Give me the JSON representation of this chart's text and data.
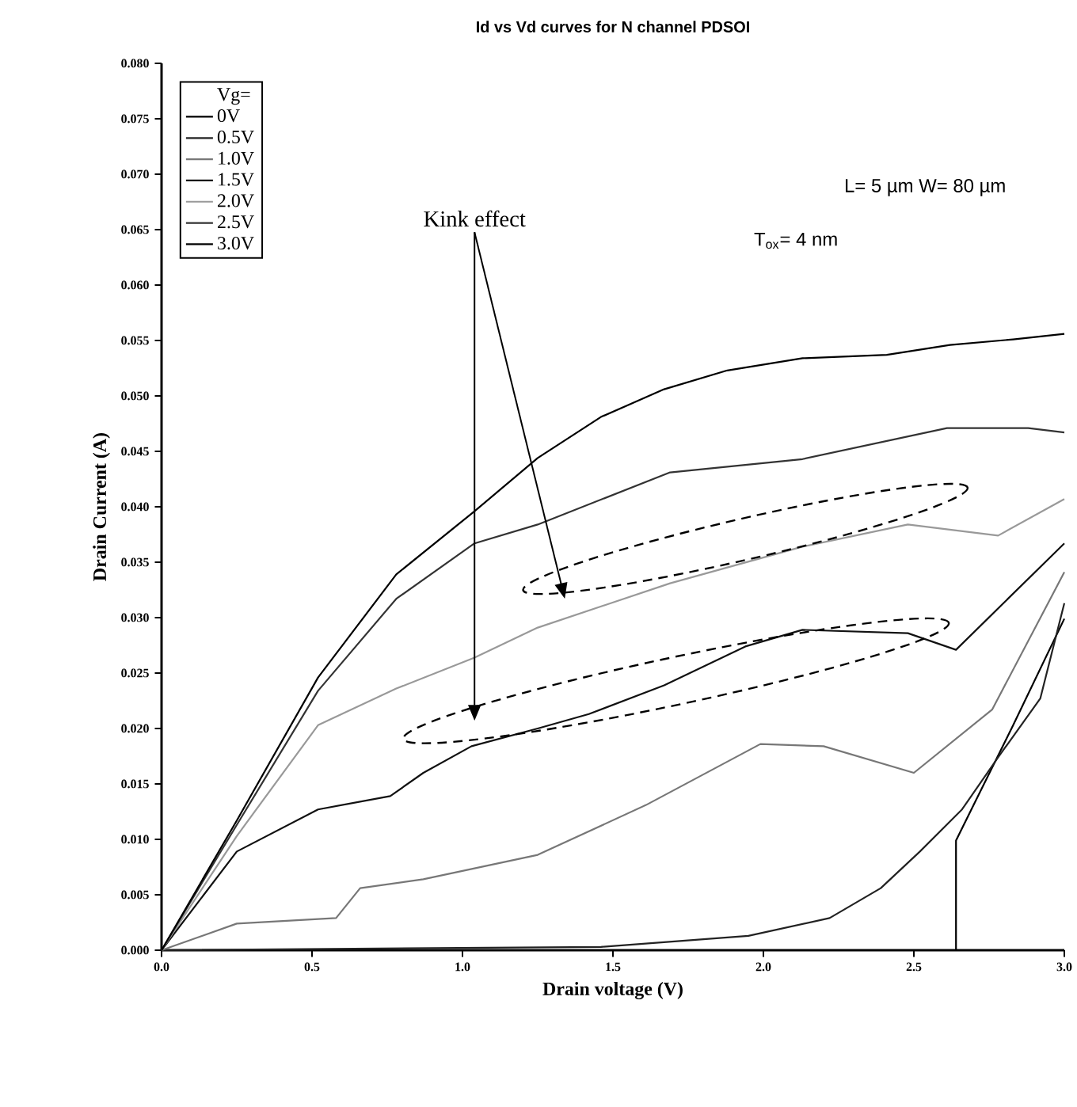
{
  "chart_data": {
    "type": "line",
    "title": "Id vs Vd curves for N channel PDSOI",
    "xlabel": "Drain voltage (V)",
    "ylabel": "Drain Current (A)",
    "legend_title": "Vg=",
    "legend": "top left",
    "xlim": [
      0,
      3
    ],
    "ylim": [
      0,
      0.08
    ],
    "xticks": [
      {
        "value": 0,
        "label": "0.0"
      },
      {
        "value": 0.5,
        "label": "0.5"
      },
      {
        "value": 1,
        "label": "1.0"
      },
      {
        "value": 1.5,
        "label": "1.5"
      },
      {
        "value": 2,
        "label": "2.0"
      },
      {
        "value": 2.5,
        "label": "2.5"
      },
      {
        "value": 3,
        "label": "3.0"
      }
    ],
    "yticks": [
      {
        "value": 0,
        "label": "0.000"
      },
      {
        "value": 0.005,
        "label": "0.005"
      },
      {
        "value": 0.01,
        "label": "0.010"
      },
      {
        "value": 0.015,
        "label": "0.015"
      },
      {
        "value": 0.02,
        "label": "0.020"
      },
      {
        "value": 0.025,
        "label": "0.025"
      },
      {
        "value": 0.03,
        "label": "0.030"
      },
      {
        "value": 0.035,
        "label": "0.035"
      },
      {
        "value": 0.04,
        "label": "0.040"
      },
      {
        "value": 0.045,
        "label": "0.045"
      },
      {
        "value": 0.05,
        "label": "0.050"
      },
      {
        "value": 0.055,
        "label": "0.055"
      },
      {
        "value": 0.06,
        "label": "0.060"
      },
      {
        "value": 0.065,
        "label": "0.065"
      },
      {
        "value": 0.07,
        "label": "0.070"
      },
      {
        "value": 0.075,
        "label": "0.075"
      },
      {
        "value": 0.08,
        "label": "0.080"
      }
    ],
    "annotations": [
      "L= 5 µm W= 80 µm",
      "T$_{ox}$= 4 nm",
      "Kink effect"
    ],
    "series": [
      {
        "name": "0V",
        "color": "#000000",
        "x": [
          0,
          2.64,
          2.64,
          2.83,
          3.0
        ],
        "values": [
          0,
          0,
          0.0099,
          0.0203,
          0.0299
        ]
      },
      {
        "name": "0.5V",
        "color": "#222222",
        "x": [
          0,
          1.46,
          1.95,
          2.22,
          2.39,
          2.52,
          2.66,
          2.78,
          2.92,
          3.0
        ],
        "values": [
          0,
          0.0003,
          0.0013,
          0.0029,
          0.0056,
          0.0089,
          0.0127,
          0.0174,
          0.0227,
          0.0313
        ]
      },
      {
        "name": "1.0V",
        "color": "#777777",
        "x": [
          0,
          0.25,
          0.58,
          0.66,
          0.87,
          1.25,
          1.61,
          1.99,
          2.2,
          2.5,
          2.76,
          3.0
        ],
        "values": [
          0,
          0.0024,
          0.0029,
          0.0056,
          0.0064,
          0.0086,
          0.0131,
          0.0186,
          0.0184,
          0.016,
          0.0217,
          0.0341
        ]
      },
      {
        "name": "1.5V",
        "color": "#111111",
        "x": [
          0,
          0.25,
          0.52,
          0.76,
          0.87,
          1.03,
          1.25,
          1.42,
          1.67,
          1.94,
          2.13,
          2.48,
          2.64,
          3.0
        ],
        "values": [
          0,
          0.0089,
          0.0127,
          0.0139,
          0.016,
          0.0184,
          0.02,
          0.0213,
          0.0239,
          0.0274,
          0.0289,
          0.0286,
          0.0271,
          0.0367
        ]
      },
      {
        "name": "2.0V",
        "color": "#999999",
        "x": [
          0,
          0.25,
          0.52,
          0.78,
          1.04,
          1.25,
          1.69,
          2.13,
          2.48,
          2.78,
          3.0
        ],
        "values": [
          0,
          0.0103,
          0.0203,
          0.0236,
          0.0264,
          0.0291,
          0.0331,
          0.0364,
          0.0384,
          0.0374,
          0.0407
        ]
      },
      {
        "name": "2.5V",
        "color": "#333333",
        "x": [
          0,
          0.25,
          0.52,
          0.78,
          1.04,
          1.25,
          1.69,
          2.13,
          2.61,
          2.88,
          3.0
        ],
        "values": [
          0,
          0.0113,
          0.0234,
          0.0317,
          0.0367,
          0.0384,
          0.0431,
          0.0443,
          0.0471,
          0.0471,
          0.0467
        ]
      },
      {
        "name": "3.0V",
        "color": "#000000",
        "x": [
          0,
          0.25,
          0.52,
          0.78,
          1.04,
          1.25,
          1.46,
          1.67,
          1.88,
          2.13,
          2.41,
          2.62,
          2.83,
          3.0
        ],
        "values": [
          0,
          0.0117,
          0.0246,
          0.0339,
          0.0396,
          0.0444,
          0.0481,
          0.0506,
          0.0523,
          0.0534,
          0.0537,
          0.0546,
          0.0551,
          0.0556
        ]
      }
    ]
  }
}
